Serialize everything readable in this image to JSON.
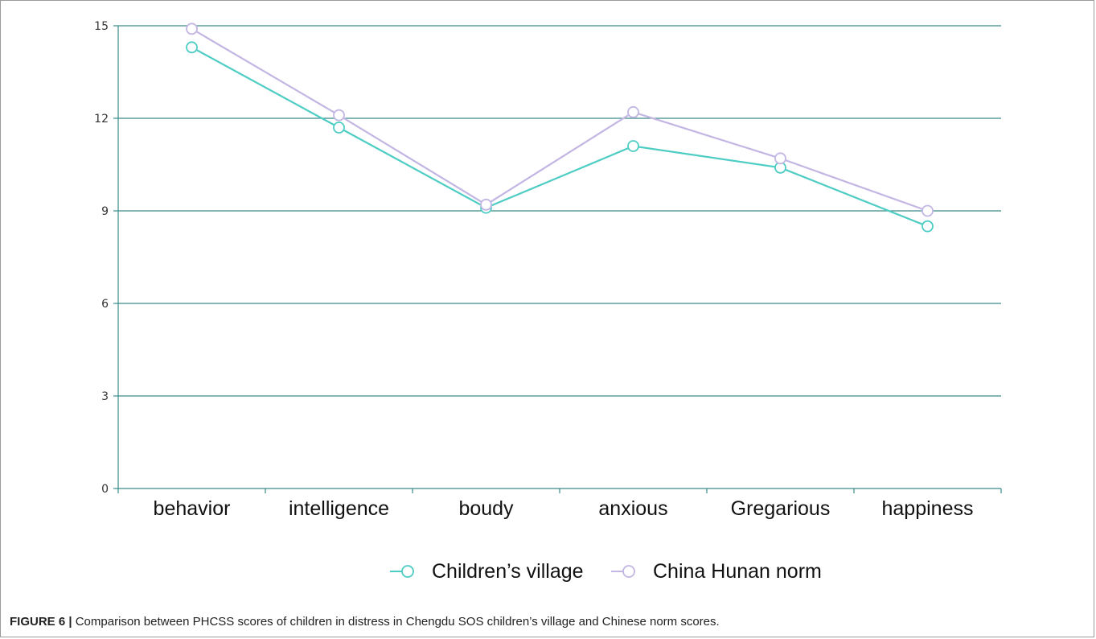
{
  "chart_data": {
    "type": "line",
    "categories": [
      "behavior",
      "intelligence",
      "boudy",
      "anxious",
      "Gregarious",
      "happiness"
    ],
    "series": [
      {
        "name": "Children’s village",
        "values": [
          14.3,
          11.7,
          9.1,
          11.1,
          10.4,
          8.5
        ],
        "color": "#4ecdc4"
      },
      {
        "name": "China Hunan norm",
        "values": [
          14.9,
          12.1,
          9.2,
          12.2,
          10.7,
          9.0
        ],
        "color": "#c3b6e3"
      }
    ],
    "ylim": [
      0,
      15
    ],
    "yticks": [
      0,
      3,
      6,
      9,
      12,
      15
    ],
    "grid": true,
    "grid_color": "#3a8a8a",
    "legend_position": "bottom-center",
    "title": "",
    "xlabel": "",
    "ylabel": ""
  },
  "caption": {
    "label": "FIGURE 6 |",
    "text": "Comparison between PHCSS scores of children in distress in Chengdu SOS children’s village and Chinese norm scores."
  }
}
